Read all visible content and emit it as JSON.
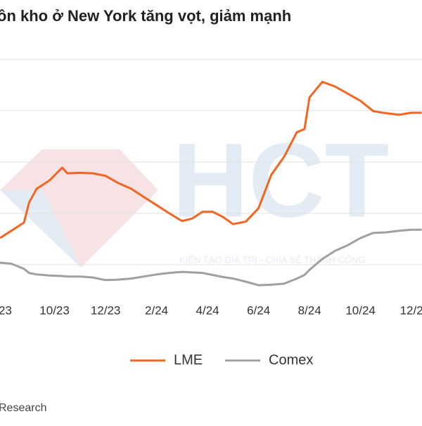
{
  "chart_data": {
    "type": "line",
    "title": "ồn kho ở New York tăng vọt, giảm mạnh",
    "x": [
      -0.14,
      0.3,
      0.8,
      1.0,
      1.3,
      1.8,
      2.3,
      2.5,
      3.0,
      3.5,
      4.0,
      4.5,
      5.0,
      5.5,
      6.0,
      6.5,
      7.0,
      7.4,
      7.8,
      8.2,
      8.6,
      9.0,
      9.5,
      10.0,
      10.5,
      11.0,
      11.5,
      11.8,
      12.0,
      12.5,
      13.0,
      13.5,
      14.0,
      14.5,
      15.0,
      15.5,
      16.0,
      16.4
    ],
    "series": [
      {
        "name": "LME",
        "color": "#f26522",
        "values": [
          52,
          66,
          82,
          121,
          148,
          164,
          189,
          178,
          179,
          178,
          173,
          159,
          148,
          132,
          116,
          100,
          85,
          90,
          103,
          103,
          93,
          79,
          84,
          110,
          175,
          210,
          258,
          264,
          326,
          356,
          347,
          333,
          319,
          299,
          295,
          292,
          296,
          296
        ]
      },
      {
        "name": "Comex",
        "color": "#a0a0a0",
        "values": [
          4,
          2,
          -8,
          -16,
          -19,
          -21,
          -22,
          -23,
          -23,
          -25,
          -30,
          -29,
          -27,
          -23,
          -19,
          -16,
          -14,
          -15,
          -16,
          -20,
          -24,
          -27,
          -33,
          -40,
          -39,
          -37,
          -27,
          -20,
          -10,
          11,
          27,
          38,
          52,
          62,
          63,
          66,
          68,
          68
        ]
      }
    ],
    "xlim": [
      -0.14,
      16.41
    ],
    "xticks": [
      {
        "value": 0,
        "label": "/23"
      },
      {
        "value": 2,
        "label": "10/23"
      },
      {
        "value": 4,
        "label": "12/23"
      },
      {
        "value": 6,
        "label": "2/24"
      },
      {
        "value": 8,
        "label": "4/24"
      },
      {
        "value": 10,
        "label": "6/24"
      },
      {
        "value": 12,
        "label": "8/24"
      },
      {
        "value": 14,
        "label": "10/24"
      },
      {
        "value": 16,
        "label": "12/2"
      }
    ],
    "ylim": [
      -44,
      436
    ],
    "gridlines": [
      0,
      100,
      200,
      300,
      400
    ],
    "grid": true,
    "source": "Research",
    "watermark": {
      "logo": "HCT",
      "slogan": "KIẾN TẠO GIÁ TRỊ - CHIA SẺ THÀNH CÔNG"
    }
  }
}
